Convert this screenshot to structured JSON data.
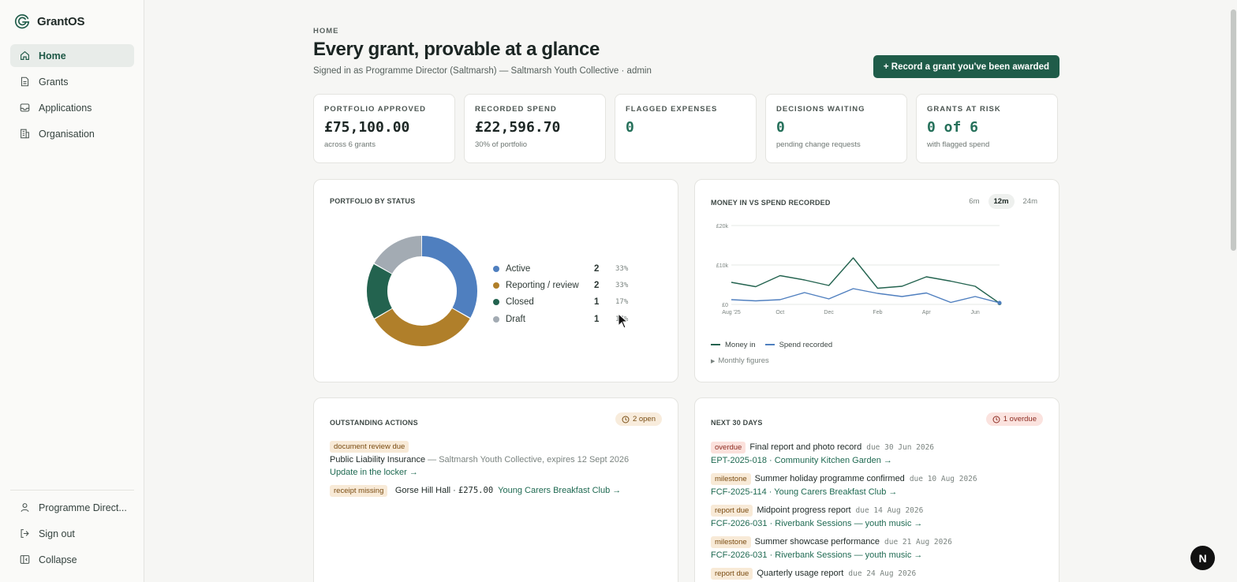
{
  "brand": {
    "name": "GrantOS"
  },
  "nav": {
    "items": [
      {
        "label": "Home",
        "icon": "home-icon"
      },
      {
        "label": "Grants",
        "icon": "document-icon"
      },
      {
        "label": "Applications",
        "icon": "inbox-icon"
      },
      {
        "label": "Organisation",
        "icon": "building-icon"
      }
    ],
    "bottom": [
      {
        "label": "Programme Direct...",
        "icon": "user-icon"
      },
      {
        "label": "Sign out",
        "icon": "sign-out-icon"
      },
      {
        "label": "Collapse",
        "icon": "sidebar-collapse-icon"
      }
    ]
  },
  "header": {
    "breadcrumb": "HOME",
    "title": "Every grant, provable at a glance",
    "subtitle": "Signed in as Programme Director (Saltmarsh) — Saltmarsh Youth Collective · admin",
    "cta": "+ Record a grant you've been awarded"
  },
  "stats": [
    {
      "label": "PORTFOLIO APPROVED",
      "value": "£75,100.00",
      "sub": "across 6 grants"
    },
    {
      "label": "RECORDED SPEND",
      "value": "£22,596.70",
      "sub": "30% of portfolio"
    },
    {
      "label": "FLAGGED EXPENSES",
      "value": "0",
      "sub": ""
    },
    {
      "label": "DECISIONS WAITING",
      "value": "0",
      "sub": "pending change requests"
    },
    {
      "label": "GRANTS AT RISK",
      "value": "0 of 6",
      "sub": "with flagged spend"
    }
  ],
  "portfolio": {
    "title": "PORTFOLIO BY STATUS",
    "rows": [
      {
        "name": "Active",
        "count": "2",
        "pct": "33%",
        "color": "#4f7fbf"
      },
      {
        "name": "Reporting / review",
        "count": "2",
        "pct": "33%",
        "color": "#b07f2a"
      },
      {
        "name": "Closed",
        "count": "1",
        "pct": "17%",
        "color": "#23634f"
      },
      {
        "name": "Draft",
        "count": "1",
        "pct": "17%",
        "color": "#a3abb3"
      }
    ]
  },
  "chart_data": {
    "type": "line",
    "title": "MONEY IN VS SPEND RECORDED",
    "ranges": [
      "6m",
      "12m",
      "24m"
    ],
    "active_range": "12m",
    "y_ticks": [
      "£0",
      "£10k",
      "£20k"
    ],
    "ylim": [
      0,
      20000
    ],
    "x_ticks": [
      "Aug '25",
      "Oct",
      "Dec",
      "Feb",
      "Apr",
      "Jun"
    ],
    "series": [
      {
        "name": "Money in",
        "color": "#23634f",
        "values": [
          5600,
          4500,
          7300,
          6200,
          4800,
          11800,
          4100,
          4600,
          7000,
          5900,
          4600,
          300
        ]
      },
      {
        "name": "Spend recorded",
        "color": "#4f7fbf",
        "values": [
          1200,
          900,
          1200,
          3000,
          1400,
          4000,
          2800,
          2000,
          2900,
          500,
          2000,
          400
        ]
      }
    ],
    "grid": true,
    "legend": "bottom-left",
    "expand_label": "Monthly figures"
  },
  "actions": {
    "title": "OUTSTANDING ACTIONS",
    "badge": "2 open",
    "items": [
      {
        "tag": "document review due",
        "title": "Public Liability Insurance",
        "detail": "— Saltmarsh Youth Collective, expires 12 Sept 2026",
        "link": "Update in the locker →"
      },
      {
        "tag": "receipt missing",
        "title": "Gorse Hill Hall · ",
        "amount": "£275.00",
        "link": "Young Carers Breakfast Club →"
      }
    ]
  },
  "upcoming": {
    "title": "NEXT 30 DAYS",
    "badge": "1 overdue",
    "items": [
      {
        "tag": "overdue",
        "title": "Final report and photo record",
        "due": "due 30 Jun 2026",
        "link": "EPT-2025-018 · Community Kitchen Garden →"
      },
      {
        "tag": "milestone",
        "title": "Summer holiday programme confirmed",
        "due": "due 10 Aug 2026",
        "link": "FCF-2025-114 · Young Carers Breakfast Club →"
      },
      {
        "tag": "report due",
        "title": "Midpoint progress report",
        "due": "due 14 Aug 2026",
        "link": "FCF-2026-031 · Riverbank Sessions — youth music →"
      },
      {
        "tag": "milestone",
        "title": "Summer showcase performance",
        "due": "due 21 Aug 2026",
        "link": "FCF-2026-031 · Riverbank Sessions — youth music →"
      },
      {
        "tag": "report due",
        "title": "Quarterly usage report",
        "due": "due 24 Aug 2026",
        "link": ""
      }
    ]
  },
  "fab": {
    "label": "N"
  }
}
